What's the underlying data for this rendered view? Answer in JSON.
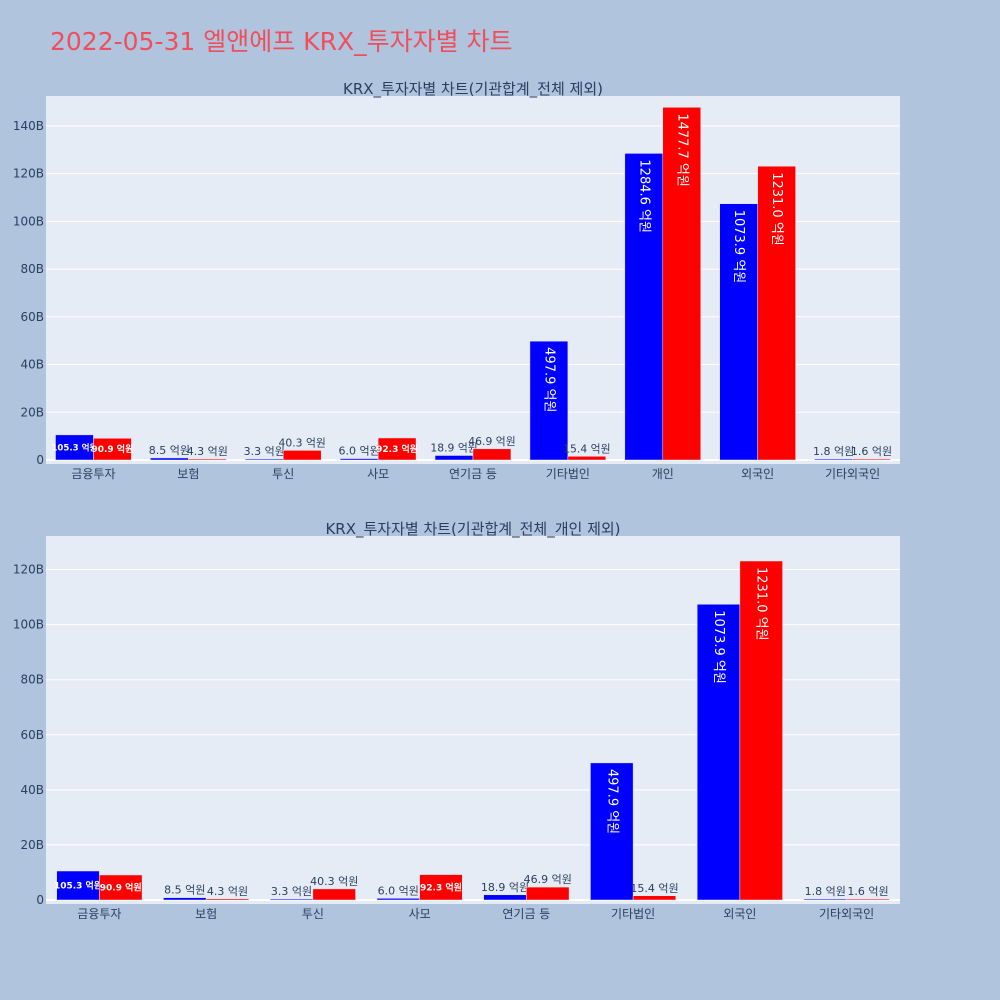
{
  "page": {
    "title": "2022-05-31 엘앤에프 KRX_투자자별 차트",
    "background": "#b0c4de",
    "plot_background": "#e5ecf6",
    "title_color": "#ef4f5c"
  },
  "chart_data": [
    {
      "type": "bar",
      "title": "KRX_투자자별 차트(기관합계_전체 제외)",
      "categories": [
        "금융투자",
        "보험",
        "투신",
        "사모",
        "연기금 등",
        "기타법인",
        "개인",
        "외국인",
        "기타외국인"
      ],
      "series": [
        {
          "color": "#0000ff",
          "values": [
            10.53,
            0.85,
            0.33,
            0.6,
            1.89,
            49.79,
            128.46,
            107.39,
            0.18
          ],
          "labels": [
            "105.3 억원",
            "8.5 억원",
            "3.3 억원",
            "6.0 억원",
            "18.9 억원",
            "497.9 억원",
            "1284.6 억원",
            "1073.9 억원",
            "1.8 억원"
          ]
        },
        {
          "color": "#ff0000",
          "values": [
            9.09,
            0.43,
            4.03,
            9.23,
            4.69,
            1.54,
            147.77,
            123.1,
            0.16
          ],
          "labels": [
            "90.9 억원",
            "4.3 억원",
            "40.3 억원",
            "92.3 억원",
            "46.9 억원",
            "15.4 억원",
            "1477.7 억원",
            "1231.0 억원",
            "1.6 억원"
          ]
        }
      ],
      "ylim": [
        0,
        150
      ],
      "yticks": [
        0,
        20,
        40,
        60,
        80,
        100,
        120,
        140
      ],
      "ytick_labels": [
        "0",
        "20B",
        "40B",
        "60B",
        "80B",
        "100B",
        "120B",
        "140B"
      ],
      "grid": true,
      "legend": "none"
    },
    {
      "type": "bar",
      "title": "KRX_투자자별 차트(기관합계_전체_개인 제외)",
      "categories": [
        "금융투자",
        "보험",
        "투신",
        "사모",
        "연기금 등",
        "기타법인",
        "외국인",
        "기타외국인"
      ],
      "series": [
        {
          "color": "#0000ff",
          "values": [
            10.53,
            0.85,
            0.33,
            0.6,
            1.89,
            49.79,
            107.39,
            0.18
          ],
          "labels": [
            "105.3 억원",
            "8.5 억원",
            "3.3 억원",
            "6.0 억원",
            "18.9 억원",
            "497.9 억원",
            "1073.9 억원",
            "1.8 억원"
          ]
        },
        {
          "color": "#ff0000",
          "values": [
            9.09,
            0.43,
            4.03,
            9.23,
            4.69,
            1.54,
            123.1,
            0.16
          ],
          "labels": [
            "90.9 억원",
            "4.3 억원",
            "40.3 억원",
            "92.3 억원",
            "46.9 억원",
            "15.4 억원",
            "1231.0 억원",
            "1.6 억원"
          ]
        }
      ],
      "ylim": [
        0,
        130
      ],
      "yticks": [
        0,
        20,
        40,
        60,
        80,
        100,
        120
      ],
      "ytick_labels": [
        "0",
        "20B",
        "40B",
        "60B",
        "80B",
        "100B",
        "120B"
      ],
      "grid": true,
      "legend": "none"
    }
  ]
}
